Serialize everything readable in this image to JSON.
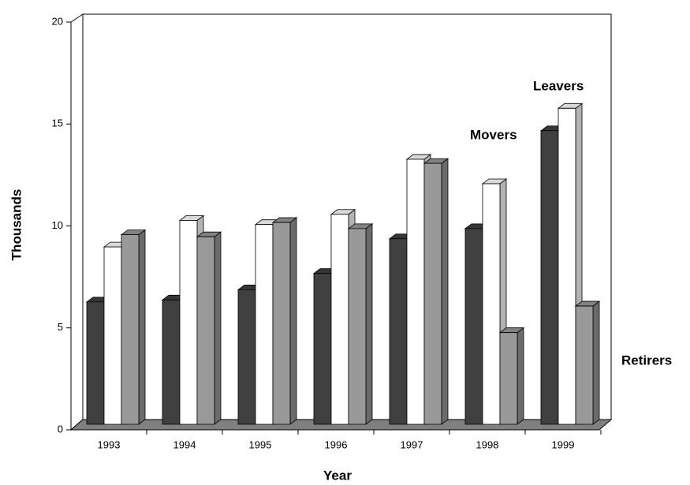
{
  "chart_data": {
    "type": "bar3d",
    "categories": [
      "1993",
      "1994",
      "1995",
      "1996",
      "1997",
      "1998",
      "1999"
    ],
    "series": [
      {
        "name": "Movers",
        "color": "#404040",
        "values": [
          6.0,
          6.1,
          6.6,
          7.4,
          9.1,
          9.6,
          14.4
        ]
      },
      {
        "name": "Leavers",
        "color": "#ffffff",
        "values": [
          8.7,
          10.0,
          9.8,
          10.3,
          13.0,
          11.8,
          15.5
        ]
      },
      {
        "name": "Retirers",
        "color": "#999999",
        "values": [
          9.3,
          9.2,
          9.9,
          9.6,
          12.8,
          4.5,
          5.8
        ]
      }
    ],
    "ylabel": "Thousands",
    "xlabel": "Year",
    "ylim": [
      0,
      20
    ],
    "yticks": [
      0,
      5,
      10,
      15,
      20
    ]
  }
}
